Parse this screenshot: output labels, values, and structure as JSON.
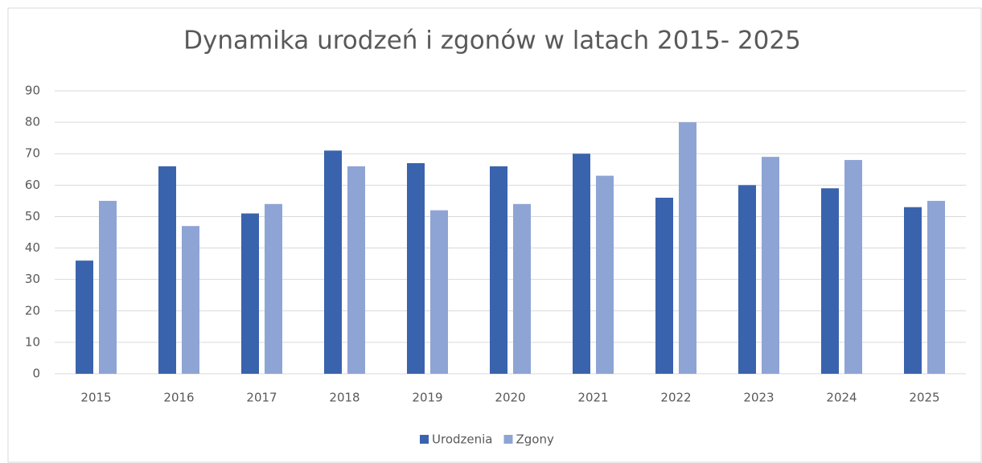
{
  "chart_data": {
    "type": "bar",
    "title": "Dynamika urodzeń i zgonów w latach 2015- 2025",
    "categories": [
      "2015",
      "2016",
      "2017",
      "2018",
      "2019",
      "2020",
      "2021",
      "2022",
      "2023",
      "2024",
      "2025"
    ],
    "series": [
      {
        "name": "Urodzenia",
        "color": "#3a63ad",
        "values": [
          36,
          66,
          51,
          71,
          67,
          66,
          70,
          56,
          60,
          59,
          53
        ]
      },
      {
        "name": "Zgony",
        "color": "#8ea4d4",
        "values": [
          55,
          47,
          54,
          66,
          52,
          54,
          63,
          80,
          69,
          68,
          55
        ]
      }
    ],
    "ylim": [
      0,
      90
    ],
    "yticks": [
      0,
      10,
      20,
      30,
      40,
      50,
      60,
      70,
      80,
      90
    ],
    "grid": true,
    "legend": "bottom"
  }
}
